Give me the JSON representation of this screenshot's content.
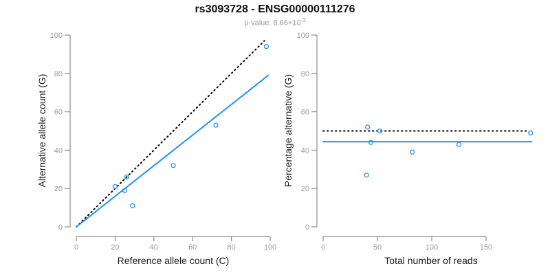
{
  "title": "rs3093728 - ENSG00000111276",
  "subtitle": {
    "prefix": "p-value: 8.66×10",
    "exponent": "-3"
  },
  "colors": {
    "accent_blue": "#1E90FF",
    "dotted_black": "#000000",
    "axis_gray": "#8c8c8c",
    "tick_label_gray": "#9a9a9a",
    "axis_text_black": "#1a1a1a",
    "subtitle_gray": "#999999"
  },
  "chart_data": [
    {
      "type": "scatter",
      "xlabel": "Reference allele count (C)",
      "ylabel": "Alternative allele count (G)",
      "xlim": [
        0,
        100
      ],
      "ylim": [
        0,
        100
      ],
      "xticks": [
        0,
        20,
        40,
        60,
        80,
        100
      ],
      "yticks": [
        0,
        20,
        40,
        60,
        80,
        100
      ],
      "grid": false,
      "legend": null,
      "points": [
        [
          20,
          21
        ],
        [
          25,
          19
        ],
        [
          26,
          26
        ],
        [
          29,
          11
        ],
        [
          50,
          32
        ],
        [
          72,
          53
        ],
        [
          98,
          94
        ]
      ],
      "lines": [
        {
          "name": "identity-dotted-line",
          "style": "dotted",
          "color": "#000000",
          "x1": 0,
          "y1": 0,
          "x2": 97,
          "y2": 97
        },
        {
          "name": "fit-solid-line",
          "style": "solid",
          "color": "#1E90FF",
          "x1": 0,
          "y1": 0,
          "x2": 99,
          "y2": 79
        }
      ]
    },
    {
      "type": "scatter",
      "xlabel": "Total number of reads",
      "ylabel": "Percentage alternative (G)",
      "xlim": [
        0,
        200
      ],
      "ylim": [
        0,
        100
      ],
      "xticks": [
        0,
        50,
        100,
        150
      ],
      "yticks": [
        0,
        20,
        40,
        60,
        80,
        100
      ],
      "grid": false,
      "legend": null,
      "points": [
        [
          40,
          27
        ],
        [
          41,
          52
        ],
        [
          44,
          44
        ],
        [
          52,
          50
        ],
        [
          82,
          39
        ],
        [
          125,
          43
        ],
        [
          191,
          49
        ]
      ],
      "lines": [
        {
          "name": "expected-50pct-dotted-line",
          "style": "dotted",
          "color": "#000000",
          "x1": 0,
          "y1": 50,
          "x2": 188,
          "y2": 50
        },
        {
          "name": "observed-mean-solid-line",
          "style": "solid",
          "color": "#1E90FF",
          "x1": 0,
          "y1": 44.4,
          "x2": 192,
          "y2": 44.4
        }
      ]
    }
  ]
}
